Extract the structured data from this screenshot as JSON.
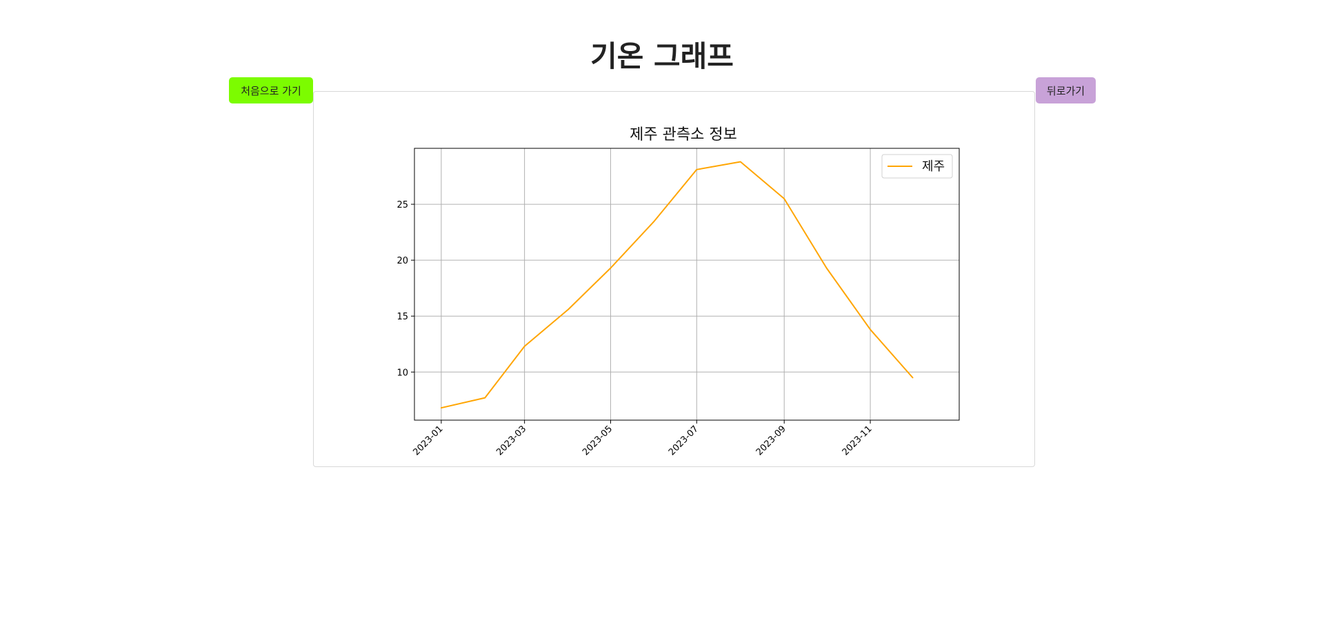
{
  "page": {
    "title": "기온 그래프",
    "home_button": "처음으로 가기",
    "back_button": "뒤로가기"
  },
  "colors": {
    "home_button": "#7cfc00",
    "back_button": "#c8a2d8",
    "series_line": "#ffa500"
  },
  "chart_data": {
    "type": "line",
    "title": "제주 관측소 정보",
    "xlabel": "",
    "ylabel": "",
    "x": [
      "2023-01",
      "2023-02",
      "2023-03",
      "2023-04",
      "2023-05",
      "2023-06",
      "2023-07",
      "2023-08",
      "2023-09",
      "2023-10",
      "2023-11",
      "2023-12"
    ],
    "series": [
      {
        "name": "제주",
        "values": [
          6.8,
          7.7,
          12.3,
          15.6,
          19.3,
          23.5,
          28.1,
          28.8,
          25.5,
          19.3,
          13.8,
          9.5
        ]
      }
    ],
    "x_ticks": [
      "2023-01",
      "2023-03",
      "2023-05",
      "2023-07",
      "2023-09",
      "2023-11"
    ],
    "y_ticks": [
      10,
      15,
      20,
      25
    ],
    "ylim": [
      5.7,
      30.0
    ],
    "xlim": [
      "2022-12-13",
      "2024-01-03"
    ],
    "grid": true,
    "legend": "top-right"
  }
}
